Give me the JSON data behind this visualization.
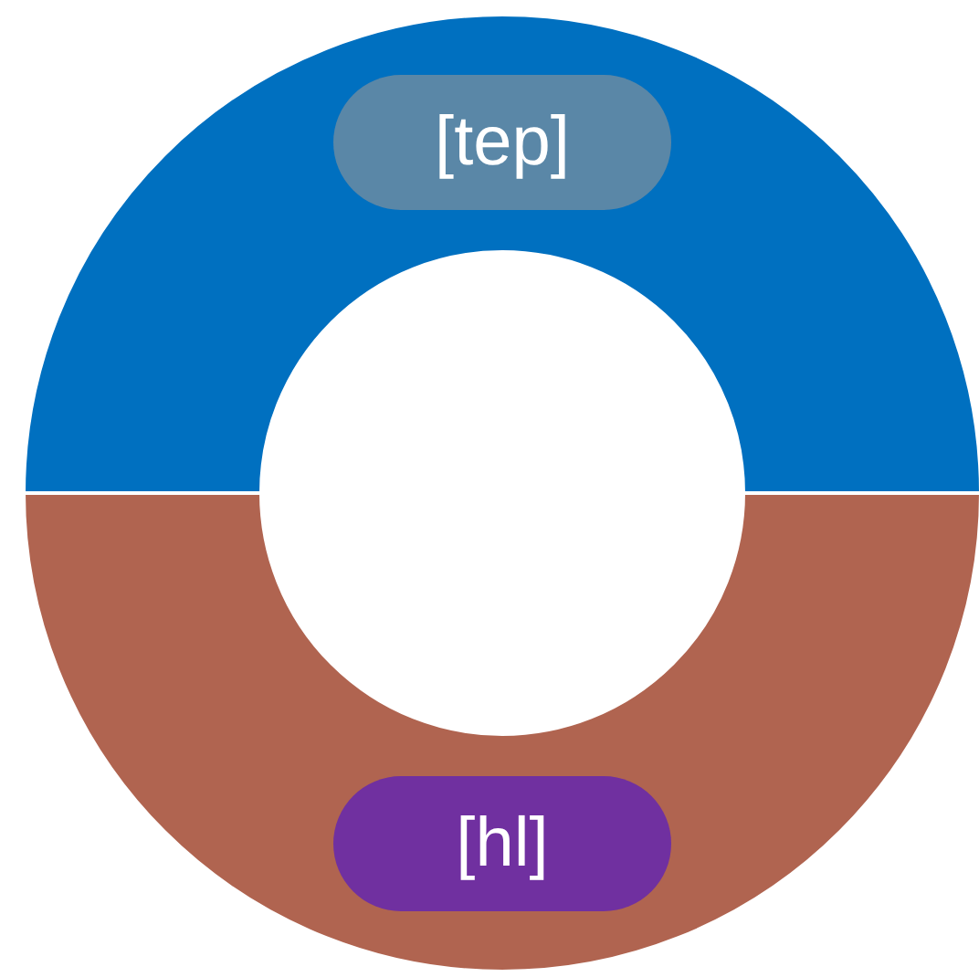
{
  "chart_data": {
    "type": "donut",
    "categories": [
      "[tep]",
      "[hl]"
    ],
    "values": [
      50,
      50
    ],
    "colors": [
      "#0070c0",
      "#b06450"
    ]
  }
}
